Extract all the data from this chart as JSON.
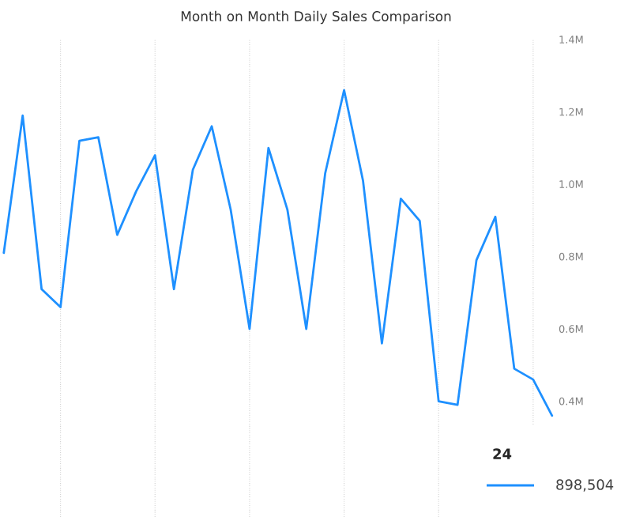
{
  "chart_data": {
    "type": "line",
    "title": "Month on Month Daily Sales Comparison",
    "categories": [
      null,
      null,
      null,
      null,
      null,
      null,
      null,
      null,
      null,
      null,
      null,
      null,
      null,
      null,
      null,
      null,
      null,
      null,
      null,
      null,
      null,
      null,
      null,
      null,
      null,
      null,
      null,
      null,
      null,
      null
    ],
    "series": [
      {
        "color": "#1e90ff",
        "values": [
          810000,
          1190000,
          710000,
          660000,
          1120000,
          1130000,
          860000,
          980000,
          1080000,
          710000,
          1040000,
          1160000,
          930000,
          600000,
          1100000,
          930000,
          600000,
          1030000,
          1260000,
          1010000,
          560000,
          960000,
          898504,
          400000,
          390000,
          790000,
          910000,
          490000,
          460000,
          360000
        ]
      }
    ],
    "ylim": [
      80000,
      1400000
    ],
    "yticks": [
      {
        "value": 400000,
        "label": "0.4M"
      },
      {
        "value": 600000,
        "label": "0.6M"
      },
      {
        "value": 800000,
        "label": "0.8M"
      },
      {
        "value": 1000000,
        "label": "1.0M"
      },
      {
        "value": 1200000,
        "label": "1.2M"
      },
      {
        "value": 1400000,
        "label": "1.4M"
      }
    ],
    "grid": "x",
    "tick_labels": "y",
    "marker": "none",
    "line_style": "solid",
    "annotations": [
      "24",
      "898,504"
    ]
  }
}
